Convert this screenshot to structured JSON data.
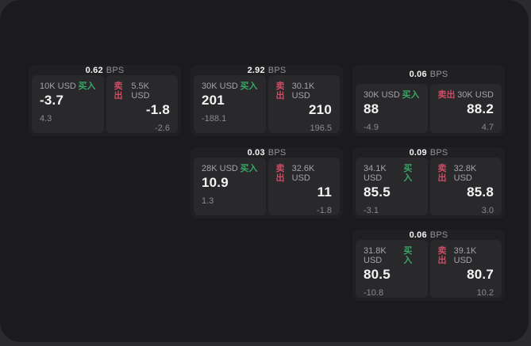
{
  "labels": {
    "bps_unit": "BPS",
    "buy": "买入",
    "sell": "卖出"
  },
  "colors": {
    "page_bg": "#2b2b2d",
    "panel_bg": "#1b1b1d",
    "card_bg": "#202022",
    "quote_panel_bg": "#29292b",
    "buy_green": "#3aa566",
    "sell_red": "#cd4b63",
    "primary_text": "#f4f4f5",
    "secondary_text": "#a3a3a8",
    "muted_text": "#8a8a8f"
  },
  "cards": [
    {
      "bps": "0.62",
      "buy": {
        "amount": "10K USD",
        "price": "-3.7",
        "delta": "4.3"
      },
      "sell": {
        "amount": "5.5K USD",
        "price": "-1.8",
        "delta": "-2.6"
      }
    },
    {
      "bps": "2.92",
      "buy": {
        "amount": "30K USD",
        "price": "201",
        "delta": "-188.1"
      },
      "sell": {
        "amount": "30.1K USD",
        "price": "210",
        "delta": "196.5"
      }
    },
    {
      "bps": "0.06",
      "buy": {
        "amount": "30K USD",
        "price": "88",
        "delta": "-4.9"
      },
      "sell": {
        "amount": "30K USD",
        "price": "88.2",
        "delta": "4.7"
      }
    },
    {
      "bps": "0.03",
      "buy": {
        "amount": "28K USD",
        "price": "10.9",
        "delta": "1.3"
      },
      "sell": {
        "amount": "32.6K USD",
        "price": "11",
        "delta": "-1.8"
      }
    },
    {
      "bps": "0.09",
      "buy": {
        "amount": "34.1K USD",
        "price": "85.5",
        "delta": "-3.1"
      },
      "sell": {
        "amount": "32.8K USD",
        "price": "85.8",
        "delta": "3.0"
      }
    },
    {
      "bps": "0.06",
      "buy": {
        "amount": "31.8K USD",
        "price": "80.5",
        "delta": "-10.8"
      },
      "sell": {
        "amount": "39.1K USD",
        "price": "80.7",
        "delta": "10.2"
      }
    }
  ]
}
